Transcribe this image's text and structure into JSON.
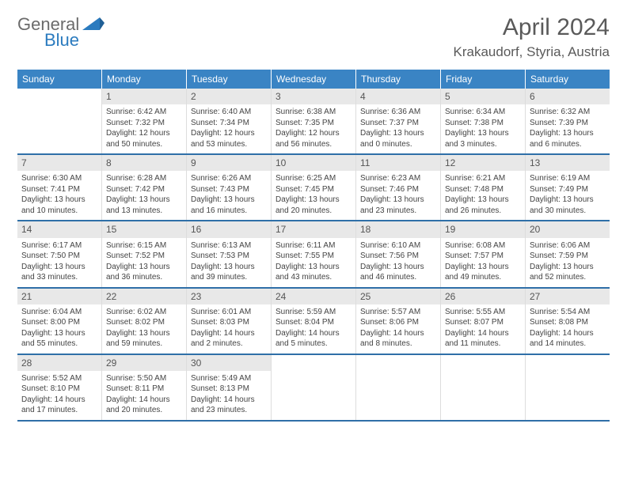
{
  "brand": {
    "line1": "General",
    "line2": "Blue",
    "icon_color": "#2b7bbf"
  },
  "title": "April 2024",
  "location": "Krakaudorf, Styria, Austria",
  "colors": {
    "header_bg": "#3a84c4",
    "header_text": "#ffffff",
    "week_border": "#2f6fa8",
    "daynum_bg": "#e8e8e8",
    "text": "#444444"
  },
  "day_headers": [
    "Sunday",
    "Monday",
    "Tuesday",
    "Wednesday",
    "Thursday",
    "Friday",
    "Saturday"
  ],
  "weeks": [
    [
      {
        "n": "",
        "sr": "",
        "ss": "",
        "dl": ""
      },
      {
        "n": "1",
        "sr": "Sunrise: 6:42 AM",
        "ss": "Sunset: 7:32 PM",
        "dl": "Daylight: 12 hours and 50 minutes."
      },
      {
        "n": "2",
        "sr": "Sunrise: 6:40 AM",
        "ss": "Sunset: 7:34 PM",
        "dl": "Daylight: 12 hours and 53 minutes."
      },
      {
        "n": "3",
        "sr": "Sunrise: 6:38 AM",
        "ss": "Sunset: 7:35 PM",
        "dl": "Daylight: 12 hours and 56 minutes."
      },
      {
        "n": "4",
        "sr": "Sunrise: 6:36 AM",
        "ss": "Sunset: 7:37 PM",
        "dl": "Daylight: 13 hours and 0 minutes."
      },
      {
        "n": "5",
        "sr": "Sunrise: 6:34 AM",
        "ss": "Sunset: 7:38 PM",
        "dl": "Daylight: 13 hours and 3 minutes."
      },
      {
        "n": "6",
        "sr": "Sunrise: 6:32 AM",
        "ss": "Sunset: 7:39 PM",
        "dl": "Daylight: 13 hours and 6 minutes."
      }
    ],
    [
      {
        "n": "7",
        "sr": "Sunrise: 6:30 AM",
        "ss": "Sunset: 7:41 PM",
        "dl": "Daylight: 13 hours and 10 minutes."
      },
      {
        "n": "8",
        "sr": "Sunrise: 6:28 AM",
        "ss": "Sunset: 7:42 PM",
        "dl": "Daylight: 13 hours and 13 minutes."
      },
      {
        "n": "9",
        "sr": "Sunrise: 6:26 AM",
        "ss": "Sunset: 7:43 PM",
        "dl": "Daylight: 13 hours and 16 minutes."
      },
      {
        "n": "10",
        "sr": "Sunrise: 6:25 AM",
        "ss": "Sunset: 7:45 PM",
        "dl": "Daylight: 13 hours and 20 minutes."
      },
      {
        "n": "11",
        "sr": "Sunrise: 6:23 AM",
        "ss": "Sunset: 7:46 PM",
        "dl": "Daylight: 13 hours and 23 minutes."
      },
      {
        "n": "12",
        "sr": "Sunrise: 6:21 AM",
        "ss": "Sunset: 7:48 PM",
        "dl": "Daylight: 13 hours and 26 minutes."
      },
      {
        "n": "13",
        "sr": "Sunrise: 6:19 AM",
        "ss": "Sunset: 7:49 PM",
        "dl": "Daylight: 13 hours and 30 minutes."
      }
    ],
    [
      {
        "n": "14",
        "sr": "Sunrise: 6:17 AM",
        "ss": "Sunset: 7:50 PM",
        "dl": "Daylight: 13 hours and 33 minutes."
      },
      {
        "n": "15",
        "sr": "Sunrise: 6:15 AM",
        "ss": "Sunset: 7:52 PM",
        "dl": "Daylight: 13 hours and 36 minutes."
      },
      {
        "n": "16",
        "sr": "Sunrise: 6:13 AM",
        "ss": "Sunset: 7:53 PM",
        "dl": "Daylight: 13 hours and 39 minutes."
      },
      {
        "n": "17",
        "sr": "Sunrise: 6:11 AM",
        "ss": "Sunset: 7:55 PM",
        "dl": "Daylight: 13 hours and 43 minutes."
      },
      {
        "n": "18",
        "sr": "Sunrise: 6:10 AM",
        "ss": "Sunset: 7:56 PM",
        "dl": "Daylight: 13 hours and 46 minutes."
      },
      {
        "n": "19",
        "sr": "Sunrise: 6:08 AM",
        "ss": "Sunset: 7:57 PM",
        "dl": "Daylight: 13 hours and 49 minutes."
      },
      {
        "n": "20",
        "sr": "Sunrise: 6:06 AM",
        "ss": "Sunset: 7:59 PM",
        "dl": "Daylight: 13 hours and 52 minutes."
      }
    ],
    [
      {
        "n": "21",
        "sr": "Sunrise: 6:04 AM",
        "ss": "Sunset: 8:00 PM",
        "dl": "Daylight: 13 hours and 55 minutes."
      },
      {
        "n": "22",
        "sr": "Sunrise: 6:02 AM",
        "ss": "Sunset: 8:02 PM",
        "dl": "Daylight: 13 hours and 59 minutes."
      },
      {
        "n": "23",
        "sr": "Sunrise: 6:01 AM",
        "ss": "Sunset: 8:03 PM",
        "dl": "Daylight: 14 hours and 2 minutes."
      },
      {
        "n": "24",
        "sr": "Sunrise: 5:59 AM",
        "ss": "Sunset: 8:04 PM",
        "dl": "Daylight: 14 hours and 5 minutes."
      },
      {
        "n": "25",
        "sr": "Sunrise: 5:57 AM",
        "ss": "Sunset: 8:06 PM",
        "dl": "Daylight: 14 hours and 8 minutes."
      },
      {
        "n": "26",
        "sr": "Sunrise: 5:55 AM",
        "ss": "Sunset: 8:07 PM",
        "dl": "Daylight: 14 hours and 11 minutes."
      },
      {
        "n": "27",
        "sr": "Sunrise: 5:54 AM",
        "ss": "Sunset: 8:08 PM",
        "dl": "Daylight: 14 hours and 14 minutes."
      }
    ],
    [
      {
        "n": "28",
        "sr": "Sunrise: 5:52 AM",
        "ss": "Sunset: 8:10 PM",
        "dl": "Daylight: 14 hours and 17 minutes."
      },
      {
        "n": "29",
        "sr": "Sunrise: 5:50 AM",
        "ss": "Sunset: 8:11 PM",
        "dl": "Daylight: 14 hours and 20 minutes."
      },
      {
        "n": "30",
        "sr": "Sunrise: 5:49 AM",
        "ss": "Sunset: 8:13 PM",
        "dl": "Daylight: 14 hours and 23 minutes."
      },
      {
        "n": "",
        "sr": "",
        "ss": "",
        "dl": ""
      },
      {
        "n": "",
        "sr": "",
        "ss": "",
        "dl": ""
      },
      {
        "n": "",
        "sr": "",
        "ss": "",
        "dl": ""
      },
      {
        "n": "",
        "sr": "",
        "ss": "",
        "dl": ""
      }
    ]
  ]
}
